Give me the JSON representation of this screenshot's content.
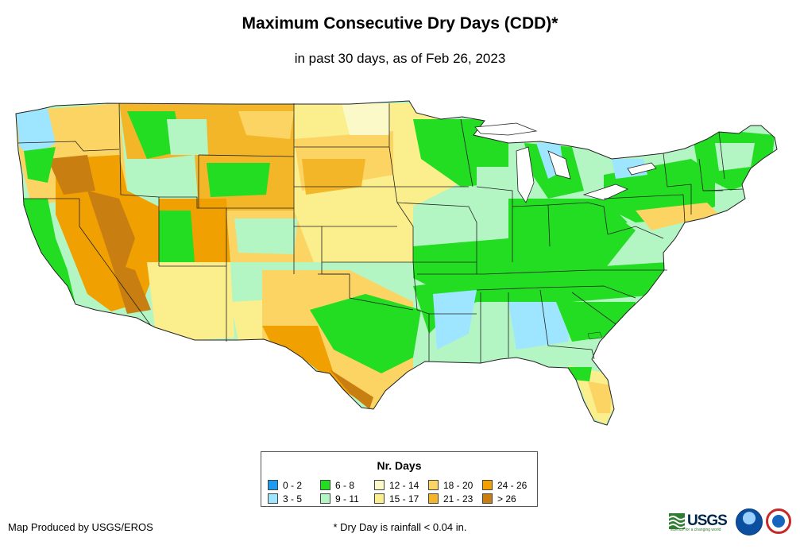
{
  "header": {
    "title": "Maximum Consecutive Dry Days (CDD)*",
    "subtitle": "in past 30 days, as of Feb 26, 2023"
  },
  "legend": {
    "title": "Nr. Days",
    "items": [
      {
        "label": "0 - 2",
        "color": "#1e9bf0"
      },
      {
        "label": "3 - 5",
        "color": "#9ee6ff"
      },
      {
        "label": "6 - 8",
        "color": "#22dd22"
      },
      {
        "label": "9 - 11",
        "color": "#b4f5c4"
      },
      {
        "label": "12 - 14",
        "color": "#fbf9c7"
      },
      {
        "label": "15 - 17",
        "color": "#fbee8c"
      },
      {
        "label": "18 - 20",
        "color": "#fbd463"
      },
      {
        "label": "21 - 23",
        "color": "#f4b629"
      },
      {
        "label": "24 - 26",
        "color": "#f0a000"
      },
      {
        "label": "> 26",
        "color": "#c87e10"
      }
    ]
  },
  "footer": {
    "credit": "Map Produced by USGS/EROS",
    "note": "* Dry Day is rainfall < 0.04 in."
  },
  "logos": {
    "usgs_text": "USGS",
    "usgs_tagline": "science for a changing world",
    "usgs_icon": "usgs-wave-icon",
    "noaa_icon": "noaa-seal-icon",
    "nws_icon": "nws-seal-icon"
  }
}
